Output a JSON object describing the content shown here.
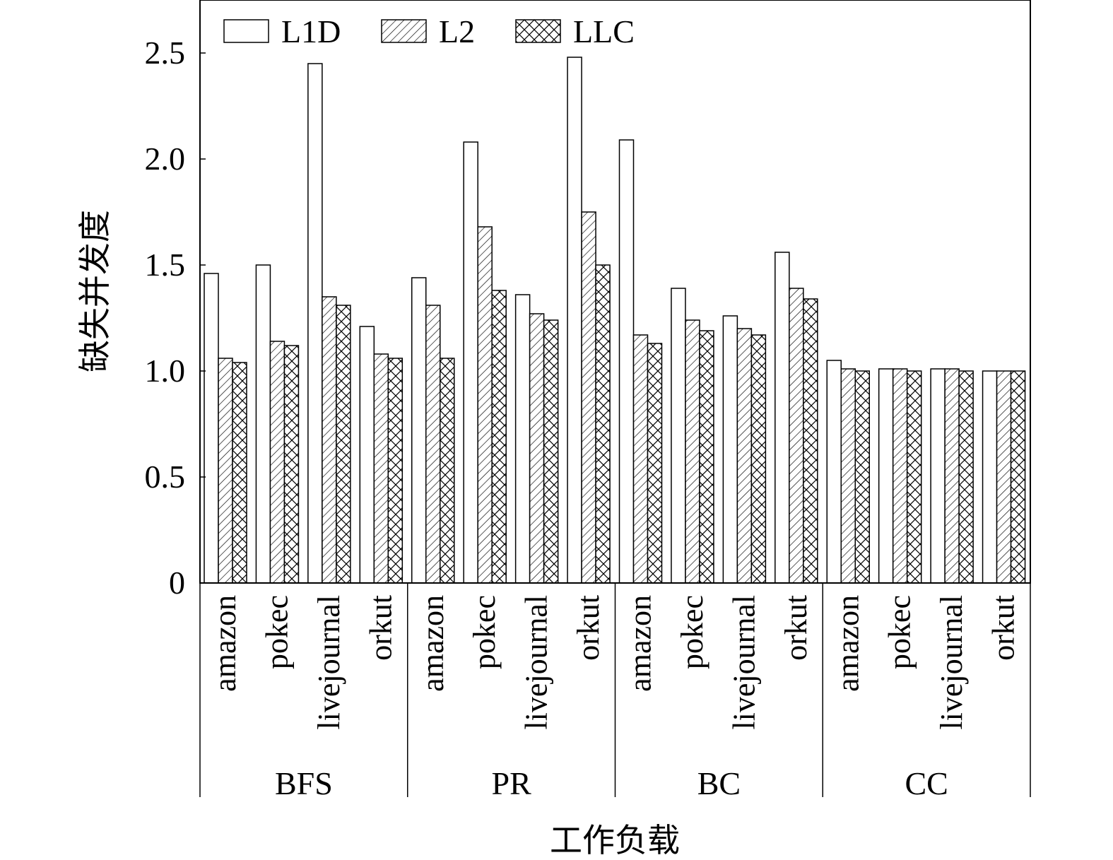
{
  "chart_data": {
    "type": "bar",
    "title": "",
    "xlabel": "工作负载",
    "ylabel": "缺失并发度",
    "ylim": [
      0,
      2.75
    ],
    "yticks": [
      {
        "value": 0,
        "label": "0"
      },
      {
        "value": 0.5,
        "label": "0.5"
      },
      {
        "value": 1.0,
        "label": "1.0"
      },
      {
        "value": 1.5,
        "label": "1.5"
      },
      {
        "value": 2.0,
        "label": "2.0"
      },
      {
        "value": 2.5,
        "label": "2.5"
      }
    ],
    "legend_position": "top-left",
    "series_names": [
      "L1D",
      "L2",
      "LLC"
    ],
    "groups": [
      {
        "name": "BFS",
        "datasets": [
          {
            "name": "amazon",
            "values": [
              1.46,
              1.06,
              1.04
            ]
          },
          {
            "name": "pokec",
            "values": [
              1.5,
              1.14,
              1.12
            ]
          },
          {
            "name": "livejournal",
            "values": [
              2.45,
              1.35,
              1.31
            ]
          },
          {
            "name": "orkut",
            "values": [
              1.21,
              1.08,
              1.06
            ]
          }
        ]
      },
      {
        "name": "PR",
        "datasets": [
          {
            "name": "amazon",
            "values": [
              1.44,
              1.31,
              1.06
            ]
          },
          {
            "name": "pokec",
            "values": [
              2.08,
              1.68,
              1.38
            ]
          },
          {
            "name": "livejournal",
            "values": [
              1.36,
              1.27,
              1.24
            ]
          },
          {
            "name": "orkut",
            "values": [
              2.48,
              1.75,
              1.5
            ]
          }
        ]
      },
      {
        "name": "BC",
        "datasets": [
          {
            "name": "amazon",
            "values": [
              2.09,
              1.17,
              1.13
            ]
          },
          {
            "name": "pokec",
            "values": [
              1.39,
              1.24,
              1.19
            ]
          },
          {
            "name": "livejournal",
            "values": [
              1.26,
              1.2,
              1.17
            ]
          },
          {
            "name": "orkut",
            "values": [
              1.56,
              1.39,
              1.34
            ]
          }
        ]
      },
      {
        "name": "CC",
        "datasets": [
          {
            "name": "amazon",
            "values": [
              1.05,
              1.01,
              1.0
            ]
          },
          {
            "name": "pokec",
            "values": [
              1.01,
              1.01,
              1.0
            ]
          },
          {
            "name": "livejournal",
            "values": [
              1.01,
              1.01,
              1.0
            ]
          },
          {
            "name": "orkut",
            "values": [
              1.0,
              1.0,
              1.0
            ]
          }
        ]
      }
    ]
  }
}
